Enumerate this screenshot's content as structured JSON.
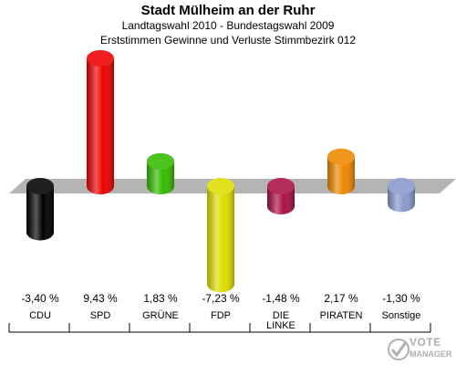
{
  "header": {
    "title": "Stadt Mülheim an der Ruhr",
    "subtitle": "Landtagswahl 2010 - Bundestagswahl 2009",
    "subtitle2": "Erststimmen Gewinne und Verluste Stimmbezirk 012"
  },
  "logo": {
    "line1": "VOTE",
    "line2": "MANAGER"
  },
  "chart_data": {
    "type": "bar",
    "categories": [
      "CDU",
      "SPD",
      "GRÜNE",
      "FDP",
      "DIE LINKE",
      "PIRATEN",
      "Sonstige"
    ],
    "values": [
      -3.4,
      9.43,
      1.83,
      -7.23,
      -1.48,
      2.17,
      -1.3
    ],
    "value_labels": [
      "-3,40 %",
      "9,43 %",
      "1,83 %",
      "-7,23 %",
      "-1,48 %",
      "2,17 %",
      "-1,30 %"
    ],
    "colors": [
      "#000000",
      "#ee0000",
      "#33bb00",
      "#dddd00",
      "#aa1144",
      "#ee8800",
      "#8899cc"
    ],
    "ylim": [
      -9,
      11
    ],
    "grid": false,
    "legend": "none"
  }
}
